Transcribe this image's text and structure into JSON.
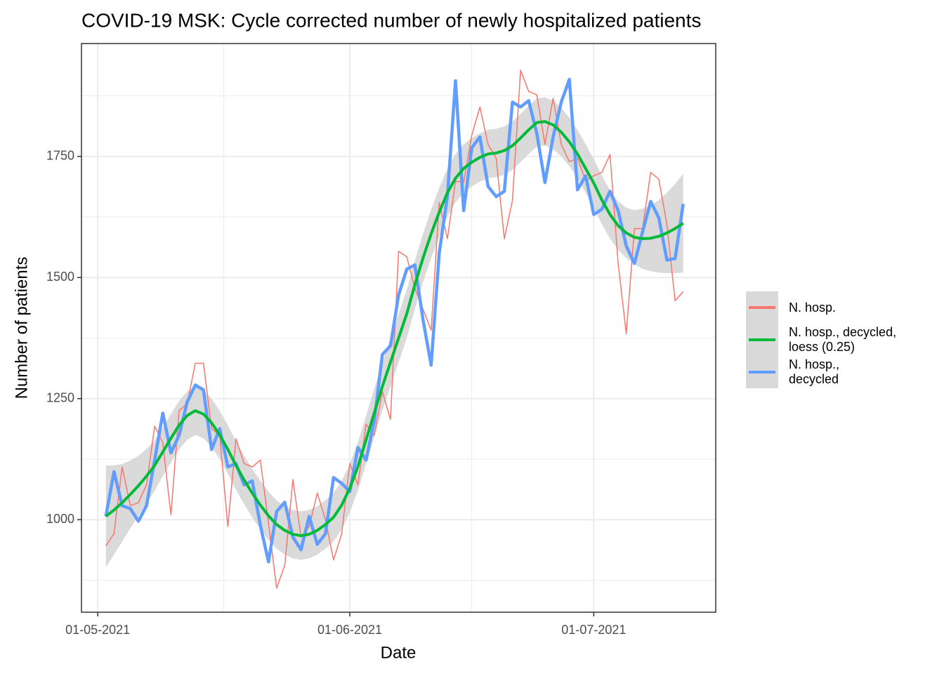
{
  "chart_data": {
    "type": "line",
    "title": "COVID-19 MSK: Cycle corrected number of newly hospitalized patients",
    "xlabel": "Date",
    "ylabel": "Number of patients",
    "x": [
      "02-05-2021",
      "03-05-2021",
      "04-05-2021",
      "05-05-2021",
      "06-05-2021",
      "07-05-2021",
      "08-05-2021",
      "09-05-2021",
      "10-05-2021",
      "11-05-2021",
      "12-05-2021",
      "13-05-2021",
      "14-05-2021",
      "15-05-2021",
      "16-05-2021",
      "17-05-2021",
      "18-05-2021",
      "19-05-2021",
      "20-05-2021",
      "21-05-2021",
      "22-05-2021",
      "23-05-2021",
      "24-05-2021",
      "25-05-2021",
      "26-05-2021",
      "27-05-2021",
      "28-05-2021",
      "29-05-2021",
      "30-05-2021",
      "31-05-2021",
      "01-06-2021",
      "02-06-2021",
      "03-06-2021",
      "04-06-2021",
      "05-06-2021",
      "06-06-2021",
      "07-06-2021",
      "08-06-2021",
      "09-06-2021",
      "10-06-2021",
      "11-06-2021",
      "12-06-2021",
      "13-06-2021",
      "14-06-2021",
      "15-06-2021",
      "16-06-2021",
      "17-06-2021",
      "18-06-2021",
      "19-06-2021",
      "20-06-2021",
      "21-06-2021",
      "22-06-2021",
      "23-06-2021",
      "24-06-2021",
      "25-06-2021",
      "26-06-2021",
      "27-06-2021",
      "28-06-2021",
      "29-06-2021",
      "30-06-2021",
      "01-07-2021",
      "02-07-2021",
      "03-07-2021",
      "04-07-2021",
      "05-07-2021",
      "06-07-2021",
      "07-07-2021",
      "08-07-2021",
      "09-07-2021",
      "10-07-2021",
      "11-07-2021",
      "12-07-2021"
    ],
    "series": [
      {
        "name": "N. hosp.",
        "color": "#F8766D",
        "values": [
          946,
          971,
          1109,
          1029,
          1035,
          1072,
          1193,
          1159,
          1010,
          1225,
          1239,
          1323,
          1323,
          1188,
          1174,
          986,
          1167,
          1116,
          1109,
          1123,
          993,
          859,
          906,
          1083,
          964,
          986,
          1055,
          1000,
          917,
          971,
          1116,
          1072,
          1197,
          1174,
          1265,
          1207,
          1554,
          1543,
          1478,
          1435,
          1391,
          1655,
          1580,
          1699,
          1696,
          1794,
          1852,
          1775,
          1746,
          1580,
          1659,
          1928,
          1884,
          1877,
          1775,
          1870,
          1775,
          1739,
          1746,
          1700,
          1710,
          1717,
          1754,
          1529,
          1384,
          1601,
          1601,
          1717,
          1703,
          1609,
          1452,
          1471
        ]
      },
      {
        "name": "N. hosp., decycled,\nloess (0.25)",
        "color": "#00BA38",
        "values": [
          1007,
          1020,
          1035,
          1052,
          1070,
          1090,
          1112,
          1140,
          1168,
          1195,
          1215,
          1225,
          1218,
          1200,
          1175,
          1145,
          1112,
          1082,
          1055,
          1030,
          1008,
          990,
          978,
          970,
          967,
          970,
          978,
          990,
          1005,
          1030,
          1065,
          1110,
          1165,
          1220,
          1275,
          1325,
          1375,
          1425,
          1485,
          1540,
          1590,
          1635,
          1675,
          1705,
          1725,
          1738,
          1748,
          1755,
          1757,
          1762,
          1772,
          1788,
          1805,
          1820,
          1822,
          1815,
          1800,
          1780,
          1755,
          1725,
          1695,
          1660,
          1630,
          1607,
          1592,
          1583,
          1580,
          1581,
          1585,
          1592,
          1601,
          1612
        ]
      },
      {
        "name": "N. hosp.,\ndecycled",
        "color": "#619CFF",
        "values": [
          1007,
          1099,
          1029,
          1023,
          997,
          1029,
          1123,
          1220,
          1138,
          1174,
          1243,
          1278,
          1268,
          1145,
          1188,
          1109,
          1116,
          1072,
          1080,
          988,
          913,
          1017,
          1036,
          964,
          938,
          1007,
          949,
          971,
          1087,
          1075,
          1058,
          1149,
          1123,
          1203,
          1341,
          1359,
          1464,
          1517,
          1526,
          1413,
          1319,
          1551,
          1667,
          1906,
          1638,
          1768,
          1790,
          1688,
          1667,
          1678,
          1862,
          1852,
          1865,
          1797,
          1696,
          1790,
          1862,
          1909,
          1681,
          1710,
          1630,
          1641,
          1678,
          1638,
          1565,
          1529,
          1594,
          1657,
          1623,
          1536,
          1539,
          1652
        ]
      }
    ],
    "band": {
      "color": "#d3d3d3",
      "lower": [
        902,
        928,
        955,
        982,
        1008,
        1034,
        1060,
        1090,
        1118,
        1145,
        1165,
        1175,
        1168,
        1150,
        1125,
        1095,
        1062,
        1032,
        1005,
        980,
        958,
        940,
        928,
        920,
        917,
        920,
        928,
        940,
        955,
        980,
        1015,
        1060,
        1115,
        1170,
        1225,
        1275,
        1325,
        1375,
        1435,
        1490,
        1540,
        1585,
        1625,
        1655,
        1675,
        1688,
        1698,
        1705,
        1707,
        1712,
        1722,
        1738,
        1755,
        1770,
        1772,
        1765,
        1750,
        1730,
        1705,
        1675,
        1645,
        1610,
        1580,
        1557,
        1540,
        1527,
        1518,
        1513,
        1510,
        1509,
        1509,
        1510
      ],
      "upper": [
        1112,
        1112,
        1115,
        1122,
        1132,
        1146,
        1164,
        1190,
        1218,
        1245,
        1265,
        1275,
        1268,
        1250,
        1225,
        1195,
        1162,
        1132,
        1105,
        1080,
        1058,
        1040,
        1028,
        1020,
        1017,
        1020,
        1028,
        1040,
        1055,
        1080,
        1115,
        1160,
        1215,
        1270,
        1325,
        1375,
        1425,
        1475,
        1535,
        1590,
        1640,
        1685,
        1725,
        1755,
        1775,
        1788,
        1798,
        1805,
        1807,
        1812,
        1822,
        1838,
        1855,
        1870,
        1872,
        1865,
        1850,
        1830,
        1805,
        1775,
        1745,
        1710,
        1680,
        1657,
        1644,
        1639,
        1642,
        1649,
        1660,
        1675,
        1693,
        1714
      ]
    },
    "xlim": [
      "29-04-2021",
      "16-07-2021"
    ],
    "xticks": [
      "01-05-2021",
      "01-06-2021",
      "01-07-2021"
    ],
    "ylim": [
      809,
      1983
    ],
    "yticks": [
      1000,
      1250,
      1500,
      1750
    ],
    "grid": true
  }
}
